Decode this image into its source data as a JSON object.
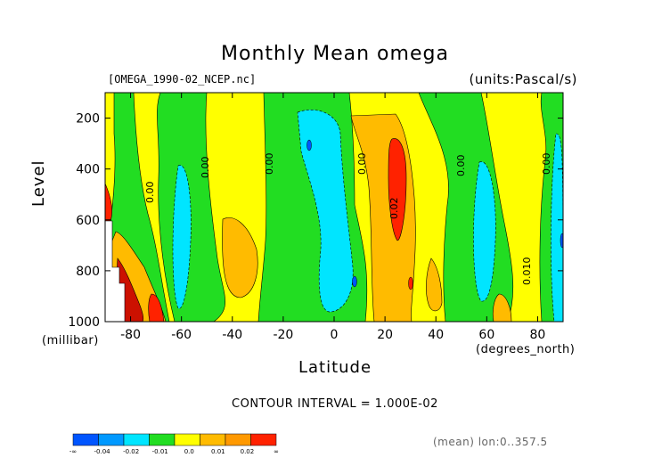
{
  "header": {
    "title": "Monthly Mean omega",
    "file": "[OMEGA_1990-02_NCEP.nc]",
    "units": "(units:Pascal/s)"
  },
  "axes": {
    "ylabel": "Level",
    "yunit": "(millibar)",
    "xlabel": "Latitude",
    "xunit": "(degrees_north)"
  },
  "footer": {
    "contour_interval": "CONTOUR INTERVAL = 1.000E-02",
    "mean_lon": "(mean) lon:0..357.5"
  },
  "chart_data": {
    "type": "heatmap",
    "title": "Monthly Mean omega",
    "xlabel": "Latitude",
    "ylabel": "Level",
    "xlim": [
      -90,
      90
    ],
    "ylim": [
      1000,
      100
    ],
    "y_reversed": true,
    "x_ticks": [
      "-80",
      "-60",
      "-40",
      "-20",
      "0",
      "20",
      "40",
      "60",
      "80"
    ],
    "y_ticks": [
      "200",
      "400",
      "600",
      "800",
      "1000"
    ],
    "contour_labels": [
      "0.00",
      "0.00",
      "0.00",
      "0.00",
      "0.00",
      "0.00",
      "0.02",
      "0.010"
    ],
    "legend": {
      "colors": [
        "#0055ff",
        "#0099ff",
        "#00e5ff",
        "#22dd22",
        "#ffff00",
        "#ffbb00",
        "#ff9900",
        "#ff2200"
      ],
      "labels": [
        "-∞",
        "-0.04",
        "-0.02",
        "-0.01",
        "0.0",
        "0.01",
        "0.02",
        "∞"
      ]
    },
    "regions": [
      {
        "level": "0.0 to 0.01",
        "color": "#ffff00",
        "description": "background positive region"
      },
      {
        "level": "-0.01 to 0.0",
        "color": "#22dd22",
        "description": "weak ascent bands"
      },
      {
        "level": "-0.02 to -0.01",
        "color": "#00e5ff",
        "description": "ascent cores near -55, -5, 62, 88"
      },
      {
        "level": "0.01 to 0.02",
        "color": "#ffbb00",
        "description": "descent near 20-35, -35, -78"
      },
      {
        "level": "> 0.02",
        "color": "#ff2200",
        "description": "strong descent near 25N, 300-650 mb"
      }
    ]
  }
}
